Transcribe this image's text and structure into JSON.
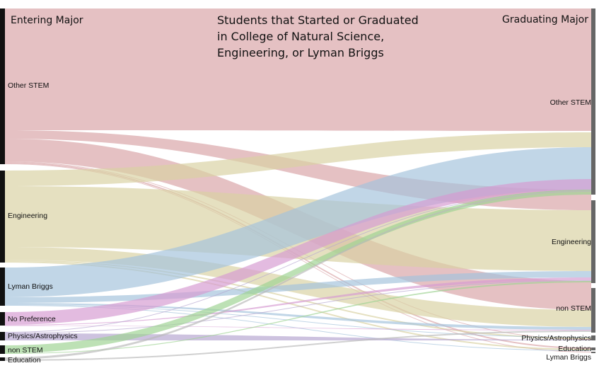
{
  "title_lines": [
    "Students that Started or Graduated",
    "in College of Natural Science,",
    "Engineering, or Lyman Briggs"
  ],
  "left_header": "Entering Major",
  "right_header": "Graduating Major",
  "left_nodes": [
    "Other STEM",
    "Engineering",
    "Lyman Briggs",
    "No Preference",
    "Physics/Astrophysics",
    "non STEM",
    "Education"
  ],
  "right_nodes": [
    "Other STEM",
    "Engineering",
    "non STEM",
    "Physics/Astrophysics",
    "Education",
    "Lyman Briggs"
  ],
  "colors": {
    "Other STEM": "#d9a3a6",
    "Engineering": "#d8d2a2",
    "Lyman Briggs": "#a4c2dc",
    "No Preference": "#d69bd2",
    "Physics/Astrophysics": "#b5a5d0",
    "non STEM": "#9ed392",
    "Education": "#b9b9b9",
    "left_bar": "#111111",
    "right_bar": "#666666"
  },
  "flows": [
    {
      "from": "Other STEM",
      "to": "Other STEM"
    },
    {
      "from": "Other STEM",
      "to": "Engineering"
    },
    {
      "from": "Other STEM",
      "to": "non STEM"
    },
    {
      "from": "Other STEM",
      "to": "Physics/Astrophysics"
    },
    {
      "from": "Other STEM",
      "to": "Education"
    },
    {
      "from": "Other STEM",
      "to": "Lyman Briggs"
    },
    {
      "from": "Engineering",
      "to": "Other STEM"
    },
    {
      "from": "Engineering",
      "to": "Engineering"
    },
    {
      "from": "Engineering",
      "to": "non STEM"
    },
    {
      "from": "Engineering",
      "to": "Physics/Astrophysics"
    },
    {
      "from": "Engineering",
      "to": "Education"
    },
    {
      "from": "Lyman Briggs",
      "to": "Other STEM"
    },
    {
      "from": "Lyman Briggs",
      "to": "Engineering"
    },
    {
      "from": "Lyman Briggs",
      "to": "non STEM"
    },
    {
      "from": "Lyman Briggs",
      "to": "Physics/Astrophysics"
    },
    {
      "from": "Lyman Briggs",
      "to": "Education"
    },
    {
      "from": "No Preference",
      "to": "Other STEM"
    },
    {
      "from": "No Preference",
      "to": "Engineering"
    },
    {
      "from": "No Preference",
      "to": "non STEM"
    },
    {
      "from": "Physics/Astrophysics",
      "to": "Other STEM"
    },
    {
      "from": "Physics/Astrophysics",
      "to": "Engineering"
    },
    {
      "from": "Physics/Astrophysics",
      "to": "Physics/Astrophysics"
    },
    {
      "from": "non STEM",
      "to": "Other STEM"
    },
    {
      "from": "non STEM",
      "to": "Engineering"
    },
    {
      "from": "Education",
      "to": "Other STEM"
    },
    {
      "from": "Education",
      "to": "non STEM"
    }
  ]
}
